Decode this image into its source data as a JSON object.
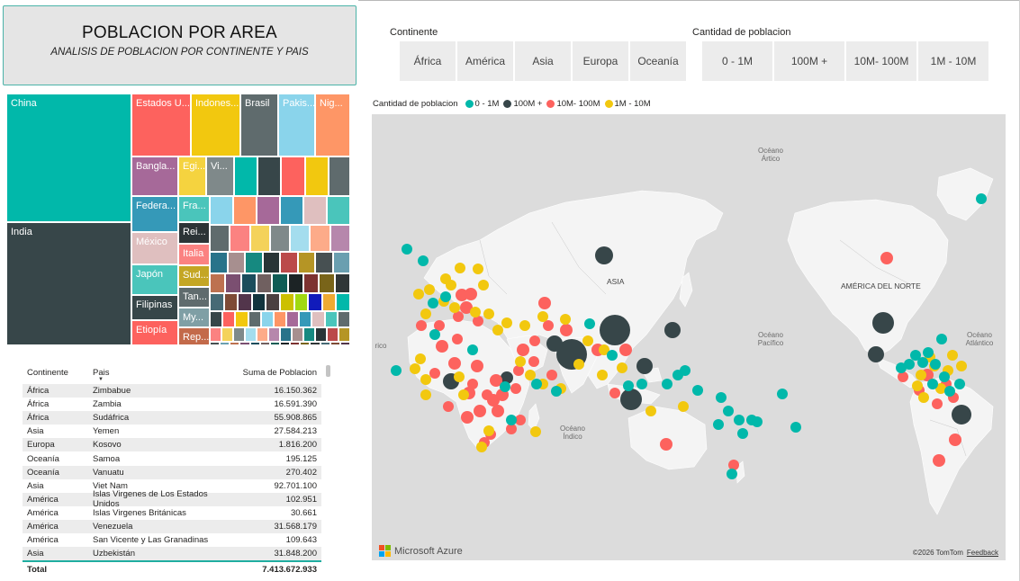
{
  "header": {
    "title": "POBLACION POR AREA",
    "subtitle": "ANALISIS DE POBLACION POR CONTINENTE Y PAIS"
  },
  "slicers": {
    "continent_label": "Continente",
    "continent_options": [
      "África",
      "América",
      "Asia",
      "Europa",
      "Oceanía"
    ],
    "population_label": "Cantidad de poblacion",
    "population_options": [
      "0 - 1M",
      "100M +",
      "10M- 100M",
      "1M - 10M"
    ]
  },
  "treemap": {
    "tiles": [
      {
        "label": "China",
        "color": "#01b8aa"
      },
      {
        "label": "India",
        "color": "#374649"
      },
      {
        "label": "Estados U...",
        "color": "#fd625e"
      },
      {
        "label": "Indones...",
        "color": "#f2c80f"
      },
      {
        "label": "Brasil",
        "color": "#5f6b6d"
      },
      {
        "label": "Pakis...",
        "color": "#8ad4eb"
      },
      {
        "label": "Nig...",
        "color": "#fe9666"
      },
      {
        "label": "Bangla...",
        "color": "#a66999"
      },
      {
        "label": "Egi...",
        "color": "#f5d33f"
      },
      {
        "label": "Vi...",
        "color": "#7f898a"
      },
      {
        "label": "Federa...",
        "color": "#3599b8"
      },
      {
        "label": "Fra...",
        "color": "#4ac5bb"
      },
      {
        "label": "México",
        "color": "#dfbfbf"
      },
      {
        "label": "Rei...",
        "color": "#2c3436"
      },
      {
        "label": "Italia",
        "color": "#fb8281"
      },
      {
        "label": "Japón",
        "color": "#4ac5bb"
      },
      {
        "label": "Sud...",
        "color": "#c4a624"
      },
      {
        "label": "Filipinas",
        "color": "#374649"
      },
      {
        "label": "Tan...",
        "color": "#5f6b6d"
      },
      {
        "label": "Etiopía",
        "color": "#fd625e"
      },
      {
        "label": "My...",
        "color": "#7f9fa5"
      },
      {
        "label": "Rep...",
        "color": "#c36a4a"
      }
    ]
  },
  "table": {
    "headers": {
      "continent": "Continente",
      "country": "Pais",
      "population": "Suma de Poblacion"
    },
    "rows": [
      {
        "continent": "África",
        "country": "Zimbabue",
        "population": "16.150.362"
      },
      {
        "continent": "África",
        "country": "Zambia",
        "population": "16.591.390"
      },
      {
        "continent": "África",
        "country": "Sudáfrica",
        "population": "55.908.865"
      },
      {
        "continent": "Asia",
        "country": "Yemen",
        "population": "27.584.213"
      },
      {
        "continent": "Europa",
        "country": "Kosovo",
        "population": "1.816.200"
      },
      {
        "continent": "Oceanía",
        "country": "Samoa",
        "population": "195.125"
      },
      {
        "continent": "Oceanía",
        "country": "Vanuatu",
        "population": "270.402"
      },
      {
        "continent": "Asia",
        "country": "Viet Nam",
        "population": "92.701.100"
      },
      {
        "continent": "América",
        "country": "Islas Virgenes de Los Estados Unidos",
        "population": "102.951"
      },
      {
        "continent": "América",
        "country": "Islas Virgenes Británicas",
        "population": "30.661"
      },
      {
        "continent": "América",
        "country": "Venezuela",
        "population": "31.568.179"
      },
      {
        "continent": "América",
        "country": "San Vicente y Las Granadinas",
        "population": "109.643"
      },
      {
        "continent": "Asia",
        "country": "Uzbekistán",
        "population": "31.848.200"
      }
    ],
    "total_label": "Total",
    "total_value": "7.413.672.933"
  },
  "map": {
    "legend_title": "Cantidad de poblacion",
    "legend": [
      {
        "label": "0 - 1M",
        "color": "#01b8aa"
      },
      {
        "label": "100M +",
        "color": "#374649"
      },
      {
        "label": "10M- 100M",
        "color": "#fd625e"
      },
      {
        "label": "1M - 10M",
        "color": "#f2c80f"
      }
    ],
    "ocean_labels": [
      "Océano Ártico",
      "Océano Pacífico",
      "Océano Índico",
      "Océano Atlántico",
      "rico"
    ],
    "continent_labels": [
      "ASIA",
      "AMÉRICA DEL NORTE"
    ],
    "brand": "Microsoft Azure",
    "copyright": "©2026 TomTom",
    "feedback": "Feedback"
  }
}
